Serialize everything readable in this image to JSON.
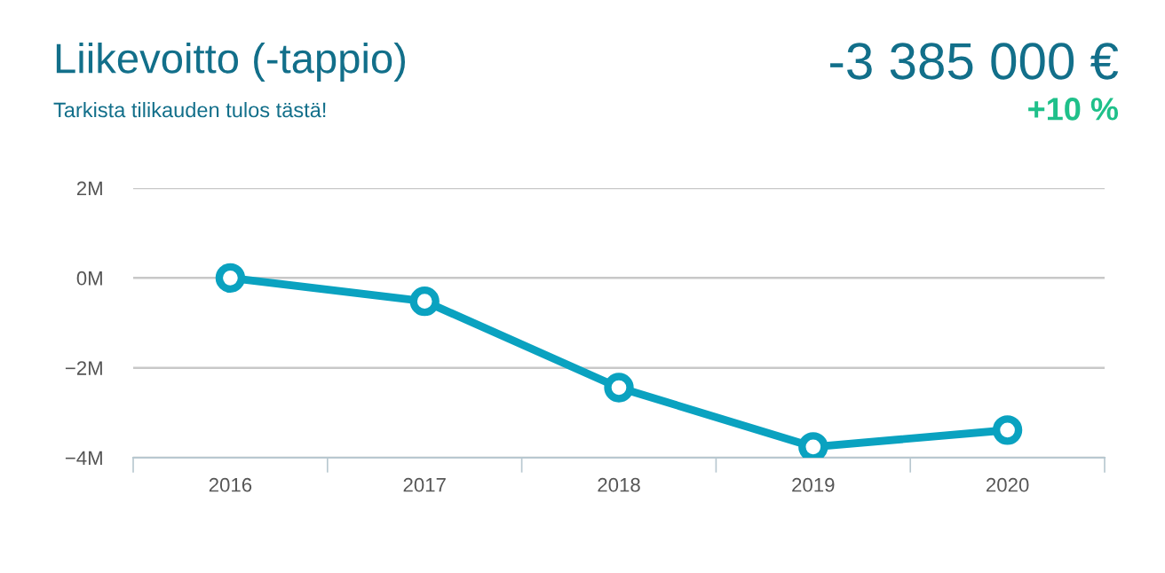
{
  "chart_data": {
    "type": "line",
    "title": "Liikevoitto (-tappio)",
    "subtitle": "Tarkista tilikauden tulos tästä!",
    "annotations": [
      "-3 385 000 €",
      "+10 %"
    ],
    "categories": [
      "2016",
      "2017",
      "2018",
      "2019",
      "2020"
    ],
    "series": [
      {
        "color": "#0aa2c0",
        "values": [
          0.0,
          -0.52,
          -2.44,
          -3.76,
          -3.385
        ]
      }
    ],
    "ylim": [
      -4,
      2
    ],
    "yticks": [
      {
        "value": -4,
        "label": "−4M"
      },
      {
        "value": -2,
        "label": "−2M"
      },
      {
        "value": 0,
        "label": "0M"
      },
      {
        "value": 2,
        "label": "2M"
      }
    ],
    "grid": "y",
    "marker": "circle",
    "line_style": "solid",
    "legend": false
  }
}
